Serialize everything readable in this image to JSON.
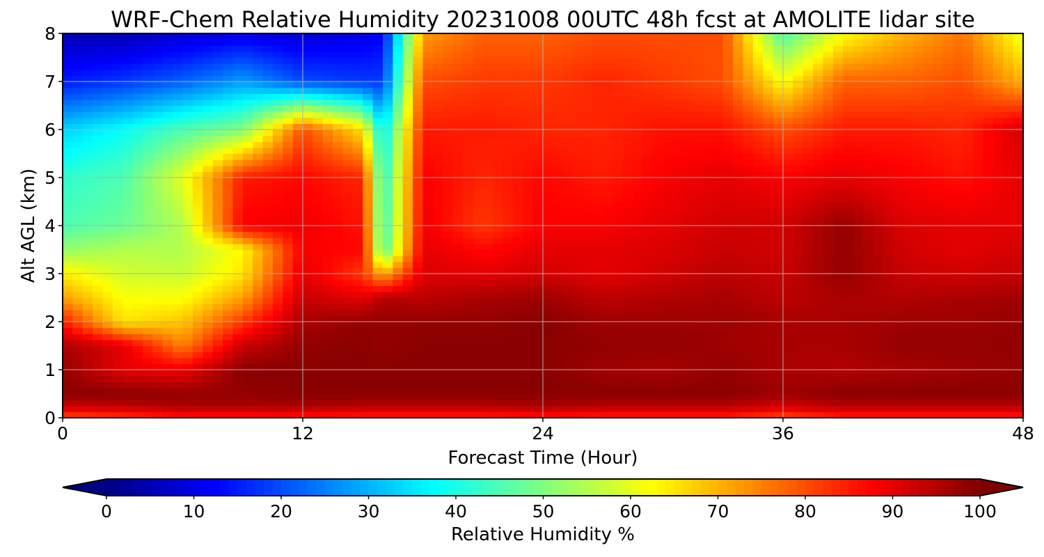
{
  "chart_data": {
    "type": "heatmap",
    "title": "WRF-Chem Relative Humidity 20231008 00UTC 48h fcst at AMOLITE lidar site",
    "xlabel": "Forecast Time (Hour)",
    "ylabel": "Alt AGL (km)",
    "xlim": [
      0,
      48
    ],
    "ylim": [
      0,
      8
    ],
    "x_ticks": [
      "0",
      "12",
      "24",
      "36",
      "48"
    ],
    "y_ticks": [
      "0",
      "1",
      "2",
      "3",
      "4",
      "5",
      "6",
      "7",
      "8"
    ],
    "grid": true,
    "colorbar": {
      "label": "Relative Humidity %",
      "ticks": [
        "0",
        "10",
        "20",
        "30",
        "40",
        "50",
        "60",
        "70",
        "80",
        "90",
        "100"
      ],
      "range": [
        0,
        100
      ],
      "colormap": "jet",
      "extend": "both",
      "placement": "bottom"
    },
    "x": [
      0,
      3,
      6,
      9,
      12,
      15,
      16,
      18,
      21,
      24,
      27,
      30,
      33,
      36,
      39,
      42,
      45,
      48
    ],
    "y": [
      0,
      0.25,
      0.5,
      1,
      1.5,
      2,
      2.5,
      3,
      3.5,
      4,
      5,
      6,
      7,
      8
    ],
    "z": [
      [
        80,
        82,
        85,
        85,
        85,
        84,
        84,
        84,
        84,
        85,
        84,
        84,
        84,
        80,
        84,
        84,
        84,
        84
      ],
      [
        93,
        94,
        96,
        96,
        96,
        95,
        95,
        95,
        95,
        96,
        95,
        95,
        95,
        92,
        95,
        95,
        95,
        95
      ],
      [
        99,
        99,
        98,
        98,
        99,
        99,
        99,
        99,
        99,
        99,
        99,
        99,
        99,
        97,
        99,
        99,
        99,
        99
      ],
      [
        98,
        90,
        89,
        99,
        99,
        99,
        99,
        99,
        99,
        99,
        97,
        96,
        98,
        96,
        95,
        96,
        97,
        98
      ],
      [
        96,
        90,
        75,
        93,
        98,
        99,
        98,
        99,
        99,
        99,
        98,
        98,
        97,
        96,
        96,
        98,
        98,
        98
      ],
      [
        85,
        65,
        68,
        82,
        96,
        98,
        98,
        98,
        98,
        99,
        97,
        97,
        97,
        96,
        96,
        97,
        97,
        98
      ],
      [
        72,
        62,
        62,
        72,
        93,
        90,
        95,
        94,
        96,
        97,
        94,
        95,
        96,
        94,
        96,
        95,
        96,
        97
      ],
      [
        64,
        58,
        57,
        65,
        90,
        82,
        70,
        91,
        90,
        92,
        90,
        92,
        94,
        93,
        98,
        93,
        92,
        93
      ],
      [
        52,
        55,
        55,
        63,
        88,
        87,
        44,
        90,
        87,
        90,
        90,
        91,
        93,
        92,
        98,
        92,
        90,
        92
      ],
      [
        45,
        48,
        55,
        88,
        89,
        86,
        42,
        89,
        82,
        88,
        88,
        90,
        92,
        92,
        98,
        91,
        90,
        90
      ],
      [
        42,
        45,
        60,
        85,
        87,
        84,
        40,
        88,
        84,
        87,
        85,
        88,
        90,
        88,
        90,
        88,
        86,
        90
      ],
      [
        33,
        38,
        45,
        50,
        80,
        65,
        35,
        85,
        85,
        84,
        84,
        86,
        86,
        80,
        85,
        85,
        84,
        92
      ],
      [
        15,
        18,
        22,
        28,
        20,
        18,
        18,
        80,
        82,
        82,
        84,
        82,
        80,
        62,
        78,
        78,
        80,
        70
      ],
      [
        5,
        5,
        8,
        10,
        8,
        10,
        12,
        72,
        78,
        78,
        80,
        80,
        80,
        45,
        62,
        70,
        76,
        60
      ]
    ]
  }
}
